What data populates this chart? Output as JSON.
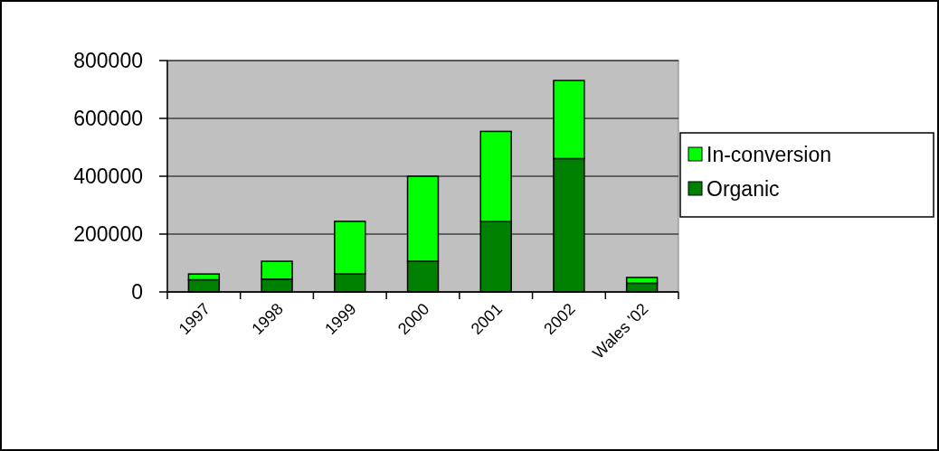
{
  "chart_data": {
    "type": "bar",
    "stacked": true,
    "categories": [
      "1997",
      "1998",
      "1999",
      "2000",
      "2001",
      "2002",
      "Wales '02"
    ],
    "series": [
      {
        "name": "Organic",
        "color": "#008000",
        "values": [
          42000,
          44000,
          62000,
          106000,
          243000,
          461000,
          30000
        ]
      },
      {
        "name": "In-conversion",
        "color": "#00ff00",
        "values": [
          20000,
          62000,
          182000,
          294000,
          312000,
          270000,
          20000
        ]
      }
    ],
    "ylim": [
      0,
      800000
    ],
    "yticks": [
      0,
      200000,
      400000,
      600000,
      800000
    ],
    "grid": "y",
    "legend": "right"
  }
}
